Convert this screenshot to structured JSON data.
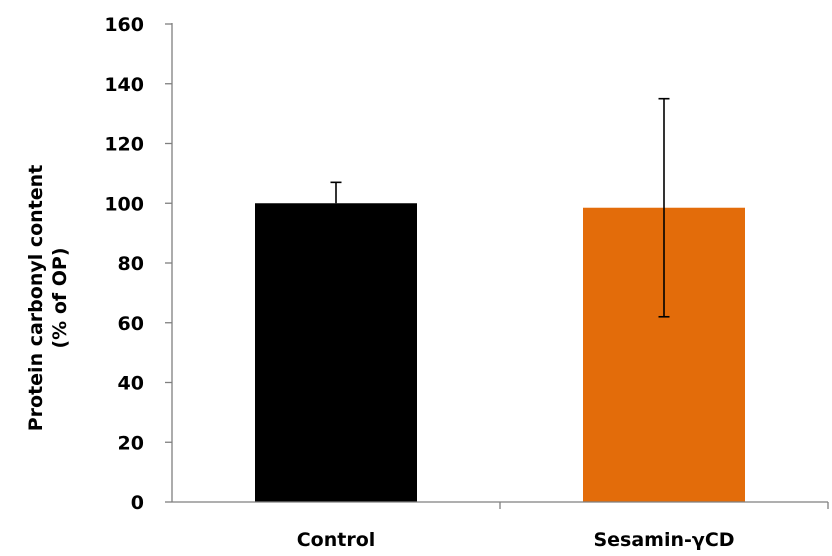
{
  "chart_data": {
    "type": "bar",
    "title": "",
    "xlabel": "",
    "ylabel_lines": [
      "Protein carbonyl content",
      "(% of OP)"
    ],
    "categories": [
      "Control",
      "Sesamin-γCD"
    ],
    "values": [
      100,
      98.5
    ],
    "error_upper": [
      107,
      135
    ],
    "error_lower": [
      100,
      62
    ],
    "colors": [
      "#000000",
      "#e36c0a"
    ],
    "ylim": [
      0,
      160
    ],
    "yticks": [
      0,
      20,
      40,
      60,
      80,
      100,
      120,
      140,
      160
    ],
    "grid": false,
    "legend": "none"
  }
}
